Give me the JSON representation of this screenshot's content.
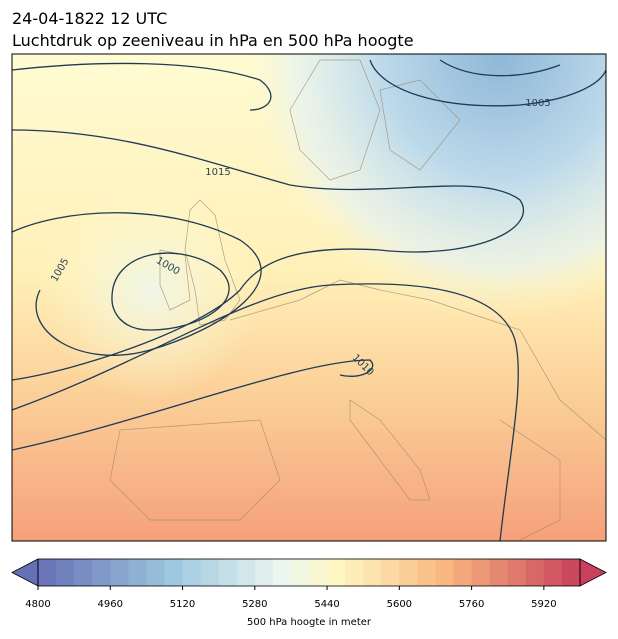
{
  "title": "24-04-1822 12 UTC",
  "subtitle": "Luchtdruk op zeeniveau in hPa en 500 hPa hoogte",
  "contour_labels": [
    1015,
    1005,
    1005,
    1000,
    1010
  ],
  "colorbar": {
    "lim": [
      4800,
      6000
    ],
    "step": 40,
    "ticks": [
      4800,
      4960,
      5120,
      5280,
      5440,
      5600,
      5760,
      5920
    ],
    "label": "500 hPa hoogte in meter"
  }
}
